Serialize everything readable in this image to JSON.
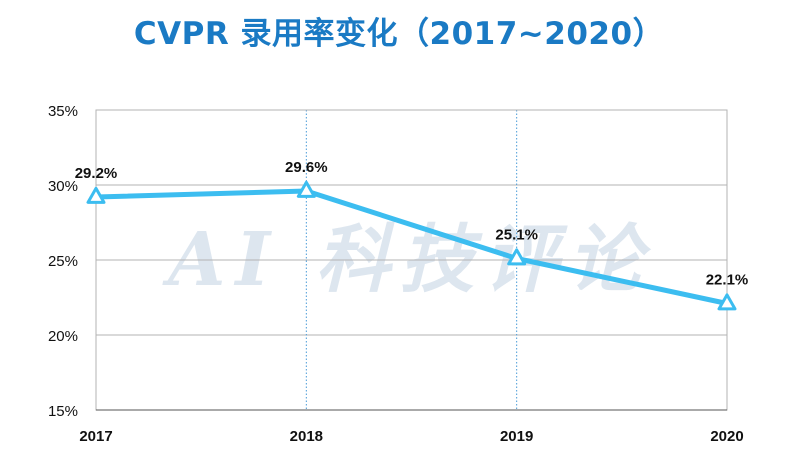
{
  "chart_data": {
    "type": "line",
    "title": "CVPR 录用率变化（2017~2020）",
    "categories": [
      "2017",
      "2018",
      "2019",
      "2020"
    ],
    "series": [
      {
        "values": [
          29.2,
          29.6,
          25.1,
          22.1
        ],
        "data_labels": [
          "29.2%",
          "29.6%",
          "25.1%",
          "22.1%"
        ]
      }
    ],
    "ylim": [
      15,
      35
    ],
    "yticks": [
      15,
      20,
      25,
      30,
      35
    ],
    "ytick_labels": [
      "15%",
      "20%",
      "25%",
      "30%",
      "35%"
    ],
    "xlabel": "",
    "ylabel": "",
    "grid": true,
    "marker": "triangle",
    "watermark": "AI 科技评论",
    "colors": {
      "line": "#3cbdf0",
      "title": "#1a7ac4",
      "grid": "#b3b3b3",
      "vertical_grid": "#4a9bd8",
      "text": "#111111",
      "watermark": "#dde6ef"
    }
  }
}
